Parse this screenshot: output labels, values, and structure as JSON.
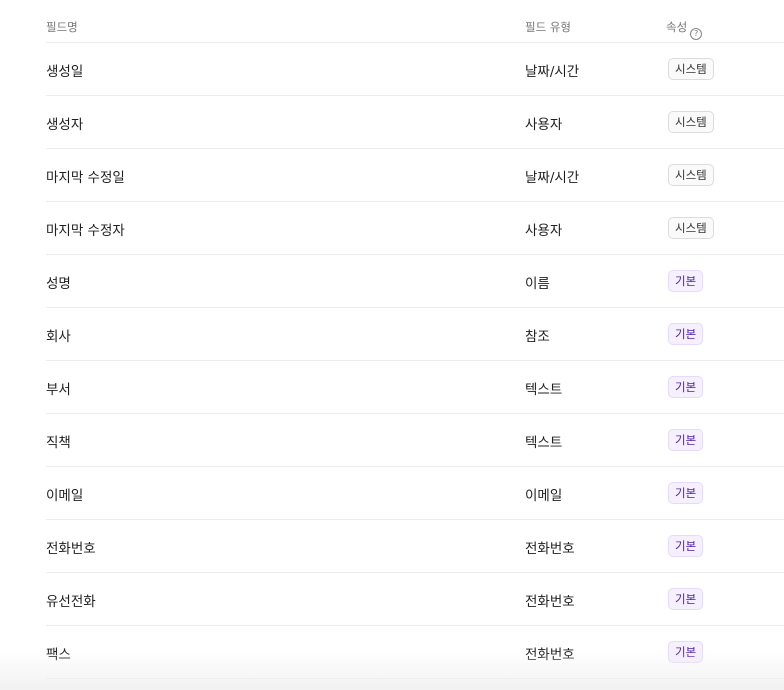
{
  "header": {
    "name": "필드명",
    "type": "필드 유형",
    "attr": "속성",
    "help_icon": "question-circle-icon"
  },
  "rows": [
    {
      "name": "생성일",
      "type": "날짜/시간",
      "attr": "시스템",
      "kind": "system"
    },
    {
      "name": "생성자",
      "type": "사용자",
      "attr": "시스템",
      "kind": "system"
    },
    {
      "name": "마지막 수정일",
      "type": "날짜/시간",
      "attr": "시스템",
      "kind": "system"
    },
    {
      "name": "마지막 수정자",
      "type": "사용자",
      "attr": "시스템",
      "kind": "system"
    },
    {
      "name": "성명",
      "type": "이름",
      "attr": "기본",
      "kind": "basic"
    },
    {
      "name": "회사",
      "type": "참조",
      "attr": "기본",
      "kind": "basic"
    },
    {
      "name": "부서",
      "type": "텍스트",
      "attr": "기본",
      "kind": "basic"
    },
    {
      "name": "직책",
      "type": "텍스트",
      "attr": "기본",
      "kind": "basic"
    },
    {
      "name": "이메일",
      "type": "이메일",
      "attr": "기본",
      "kind": "basic"
    },
    {
      "name": "전화번호",
      "type": "전화번호",
      "attr": "기본",
      "kind": "basic"
    },
    {
      "name": "유선전화",
      "type": "전화번호",
      "attr": "기본",
      "kind": "basic"
    },
    {
      "name": "팩스",
      "type": "전화번호",
      "attr": "기본",
      "kind": "basic"
    }
  ],
  "colors": {
    "basic_badge_text": "#4b1fa8",
    "basic_badge_bg": "#f5effe"
  }
}
